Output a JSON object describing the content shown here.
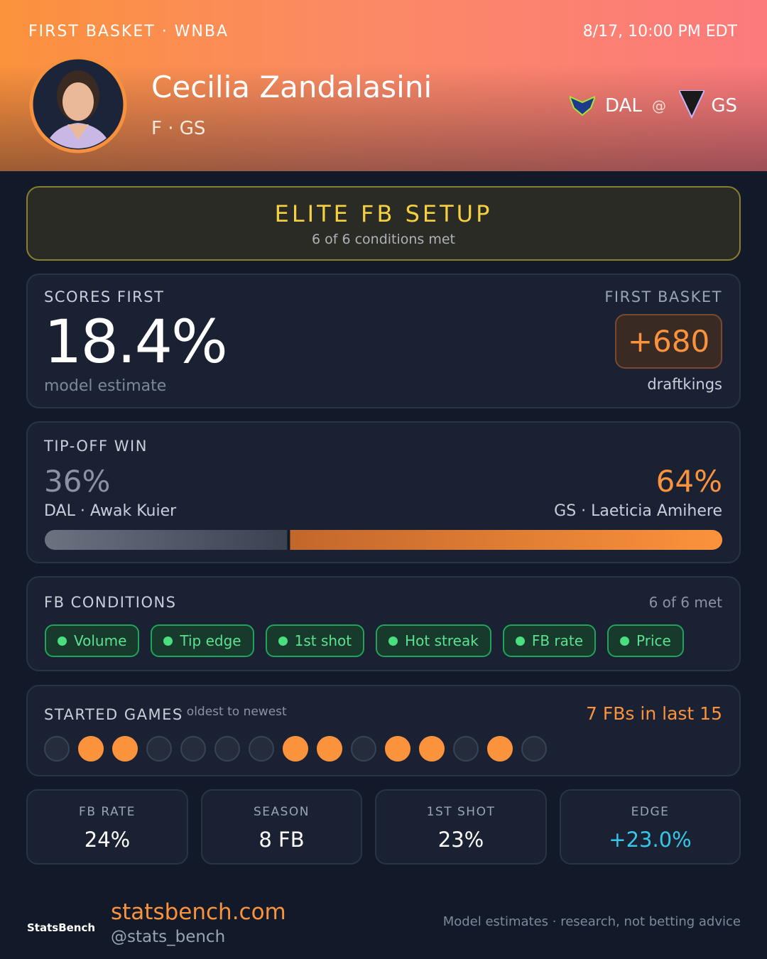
{
  "header": {
    "eyebrow": "FIRST BASKET · WNBA",
    "datetime": "8/17, 10:00 PM EDT",
    "player_name": "Cecilia Zandalasini",
    "player_meta": "F · GS",
    "away_team": "DAL",
    "at": "@",
    "home_team": "GS"
  },
  "setup": {
    "title": "ELITE FB SETUP",
    "subtitle": "6 of 6 conditions met"
  },
  "scores_first": {
    "label": "SCORES FIRST",
    "value": "18.4%",
    "note": "model estimate",
    "odds_label": "FIRST BASKET",
    "odds": "+680",
    "book": "draftkings"
  },
  "tipoff": {
    "label": "TIP-OFF WIN",
    "away": {
      "value": 36,
      "label": "36%",
      "player": "DAL · Awak Kuier"
    },
    "home": {
      "value": 64,
      "label": "64%",
      "player": "GS · Laeticia Amihere"
    }
  },
  "conditions": {
    "label": "FB CONDITIONS",
    "summary": "6 of 6 met",
    "items": [
      "Volume",
      "Tip edge",
      "1st shot",
      "Hot streak",
      "FB rate",
      "Price"
    ]
  },
  "started_games": {
    "label": "STARTED GAMES",
    "note": "· oldest to newest",
    "summary": "7 FBs in last 15",
    "games": [
      0,
      1,
      1,
      0,
      0,
      0,
      0,
      1,
      1,
      0,
      1,
      1,
      0,
      1,
      0
    ]
  },
  "stats": [
    {
      "label": "FB RATE",
      "value": "24%"
    },
    {
      "label": "SEASON",
      "value": "8 FB"
    },
    {
      "label": "1ST SHOT",
      "value": "23%"
    },
    {
      "label": "EDGE",
      "value": "+23.0%"
    }
  ],
  "footer": {
    "logo": "StatsBench",
    "site": "statsbench.com",
    "handle": "@stats_bench",
    "disclaimer": "Model estimates · research, not betting advice"
  }
}
